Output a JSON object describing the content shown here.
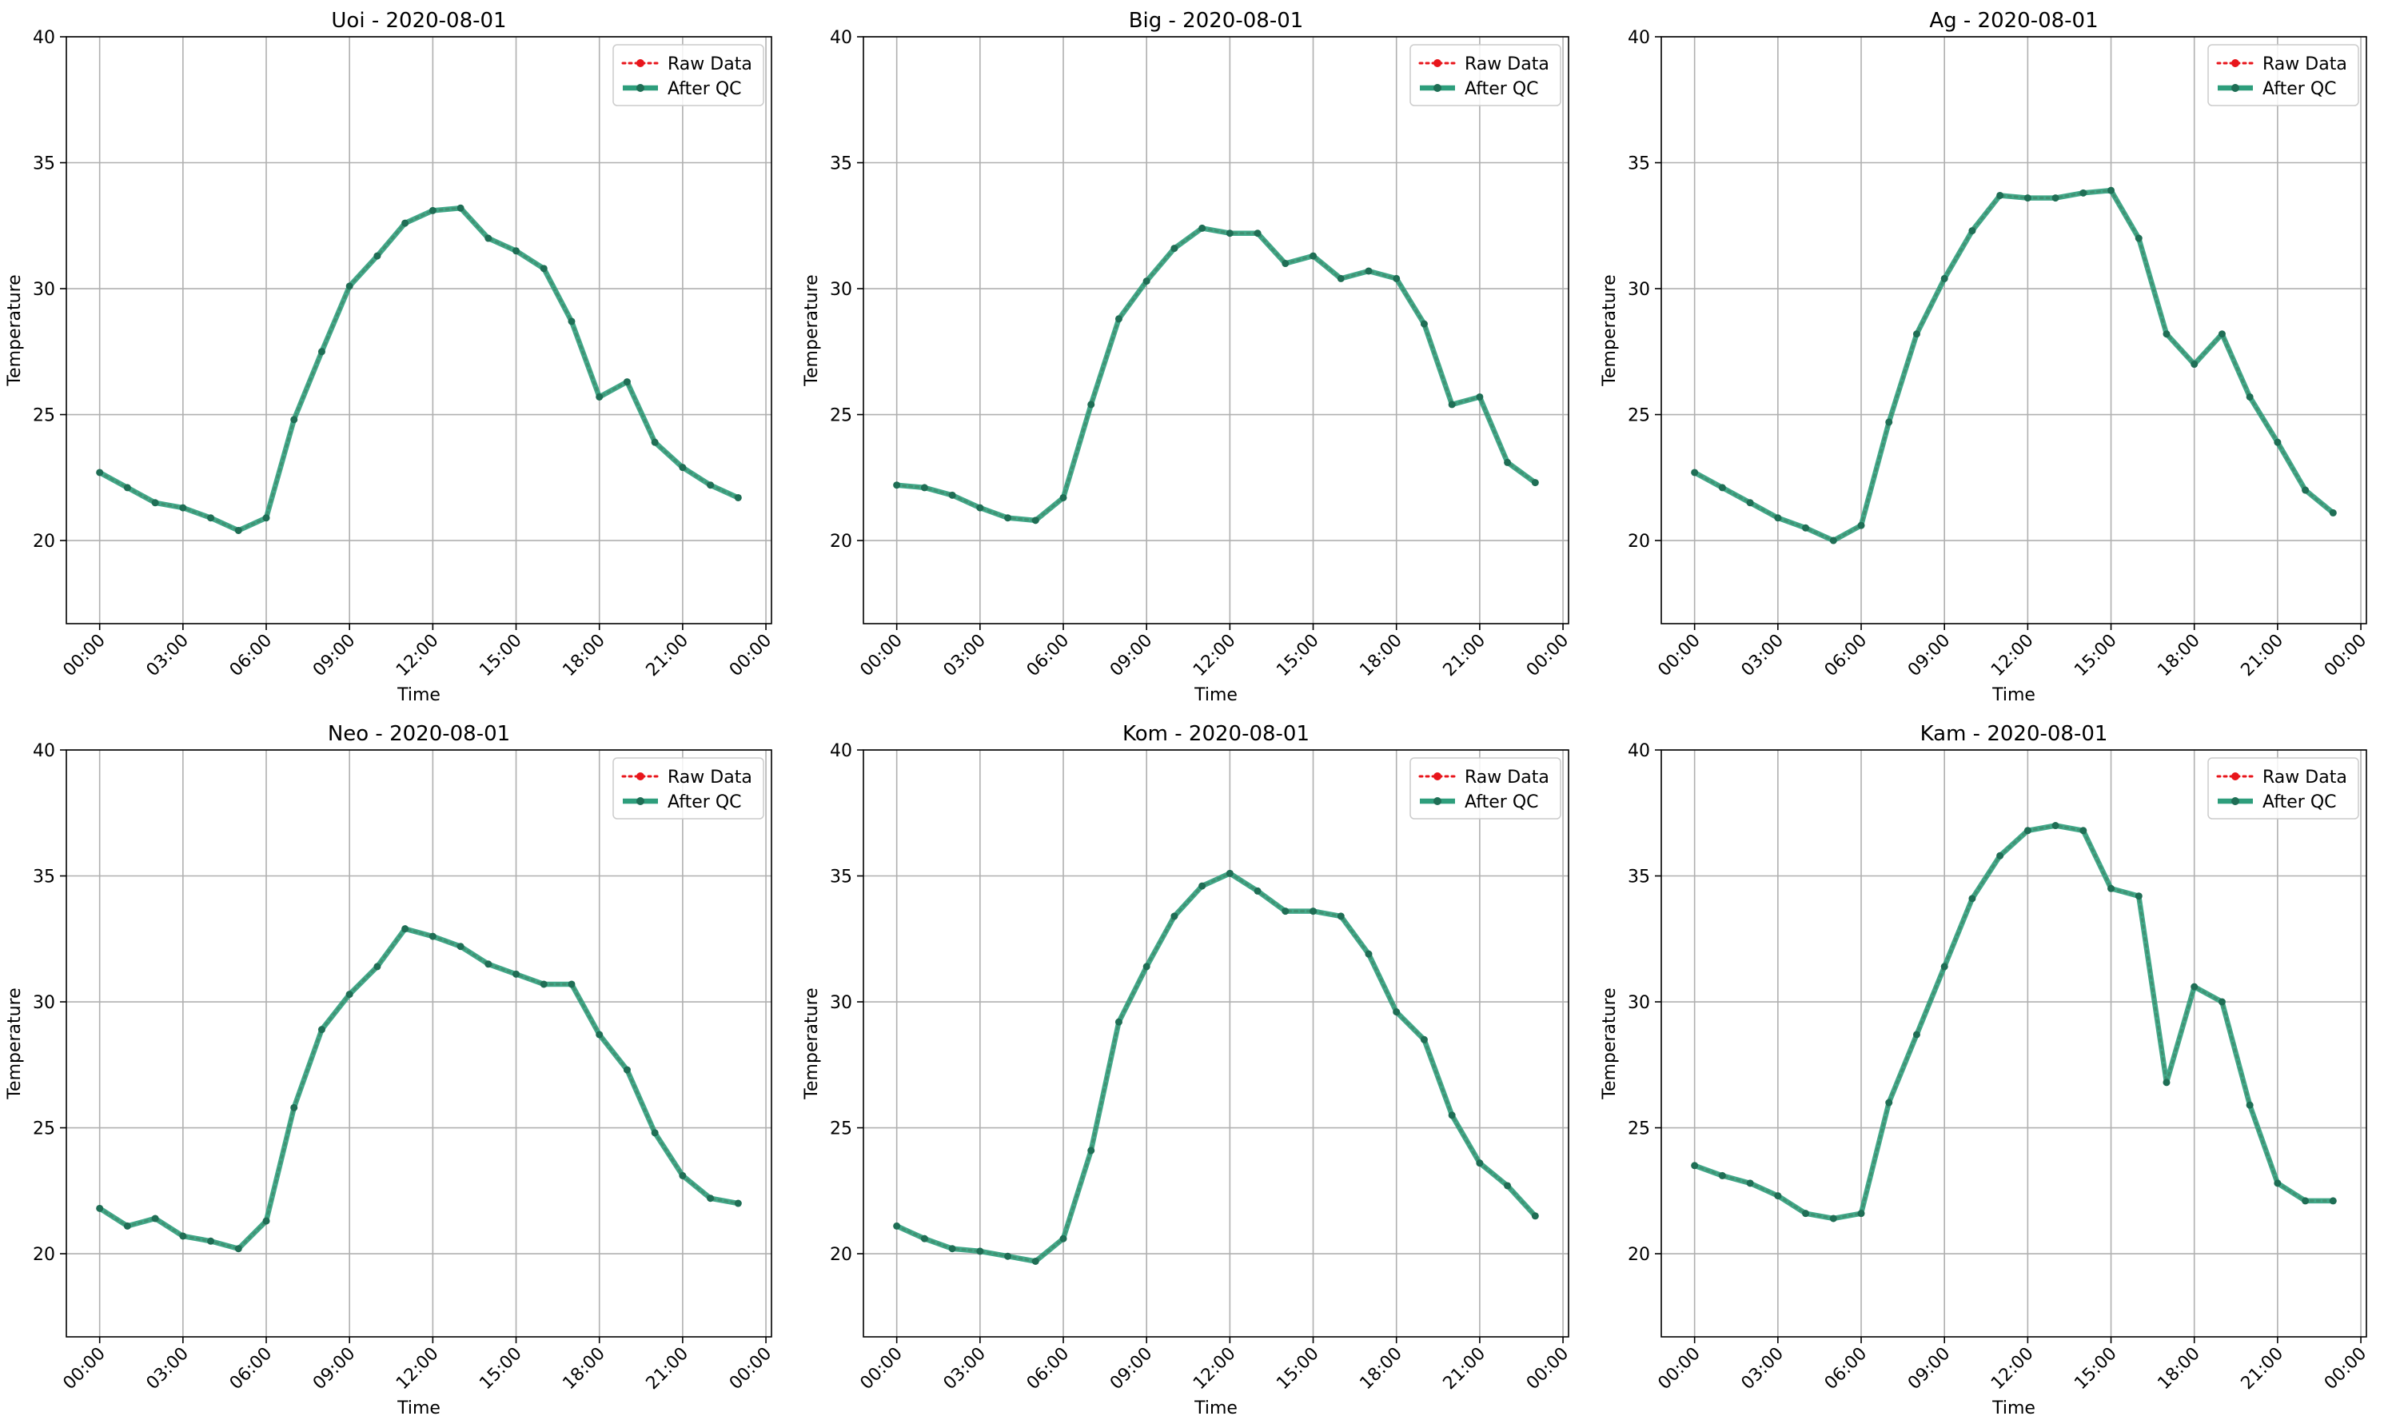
{
  "figure": {
    "legend": {
      "raw_label": "Raw Data",
      "qc_label": "After QC"
    },
    "colors": {
      "raw": "#e8151b",
      "qc": "#2e9e7c",
      "qc_marker": "#1f6e55",
      "grid": "#b0b0b0"
    }
  },
  "chart_data": [
    {
      "type": "line",
      "title": "Uoi - 2020-08-01",
      "xlabel": "Time",
      "ylabel": "Temperature",
      "xticks": [
        "00:00",
        "03:00",
        "06:00",
        "09:00",
        "12:00",
        "15:00",
        "18:00",
        "21:00",
        "00:00"
      ],
      "yticks": [
        20,
        25,
        30,
        35,
        40
      ],
      "ylim": [
        16.7,
        40
      ],
      "xlim_hours": [
        -1.2,
        24.2
      ],
      "grid": true,
      "legend_position": "upper right",
      "x_hours": [
        0,
        1,
        2,
        3,
        4,
        5,
        6,
        7,
        8,
        9,
        10,
        11,
        12,
        13,
        14,
        15,
        16,
        17,
        18,
        19,
        20,
        21,
        22,
        23
      ],
      "series": [
        {
          "name": "Raw Data",
          "values": [
            22.7,
            22.1,
            21.5,
            21.3,
            20.9,
            20.4,
            20.9,
            24.8,
            27.5,
            30.1,
            31.3,
            32.6,
            33.1,
            33.2,
            32.0,
            31.5,
            30.8,
            28.7,
            25.7,
            26.3,
            23.9,
            22.9,
            22.2,
            21.7
          ]
        },
        {
          "name": "After QC",
          "values": [
            22.7,
            22.1,
            21.5,
            21.3,
            20.9,
            20.4,
            20.9,
            24.8,
            27.5,
            30.1,
            31.3,
            32.6,
            33.1,
            33.2,
            32.0,
            31.5,
            30.8,
            28.7,
            25.7,
            26.3,
            23.9,
            22.9,
            22.2,
            21.7
          ]
        }
      ]
    },
    {
      "type": "line",
      "title": "Big - 2020-08-01",
      "xlabel": "Time",
      "ylabel": "Temperature",
      "xticks": [
        "00:00",
        "03:00",
        "06:00",
        "09:00",
        "12:00",
        "15:00",
        "18:00",
        "21:00",
        "00:00"
      ],
      "yticks": [
        20,
        25,
        30,
        35,
        40
      ],
      "ylim": [
        16.7,
        40
      ],
      "xlim_hours": [
        -1.2,
        24.2
      ],
      "grid": true,
      "legend_position": "upper right",
      "x_hours": [
        0,
        1,
        2,
        3,
        4,
        5,
        6,
        7,
        8,
        9,
        10,
        11,
        12,
        13,
        14,
        15,
        16,
        17,
        18,
        19,
        20,
        21,
        22,
        23
      ],
      "series": [
        {
          "name": "Raw Data",
          "values": [
            22.2,
            22.1,
            21.8,
            21.3,
            20.9,
            20.8,
            21.7,
            25.4,
            28.8,
            30.3,
            31.6,
            32.4,
            32.2,
            32.2,
            31.0,
            31.3,
            30.4,
            30.7,
            30.4,
            28.6,
            25.4,
            25.7,
            23.1,
            22.3
          ]
        },
        {
          "name": "After QC",
          "values": [
            22.2,
            22.1,
            21.8,
            21.3,
            20.9,
            20.8,
            21.7,
            25.4,
            28.8,
            30.3,
            31.6,
            32.4,
            32.2,
            32.2,
            31.0,
            31.3,
            30.4,
            30.7,
            30.4,
            28.6,
            25.4,
            25.7,
            23.1,
            22.3
          ]
        }
      ]
    },
    {
      "type": "line",
      "title": "Ag - 2020-08-01",
      "xlabel": "Time",
      "ylabel": "Temperature",
      "xticks": [
        "00:00",
        "03:00",
        "06:00",
        "09:00",
        "12:00",
        "15:00",
        "18:00",
        "21:00",
        "00:00"
      ],
      "yticks": [
        20,
        25,
        30,
        35,
        40
      ],
      "ylim": [
        16.7,
        40
      ],
      "xlim_hours": [
        -1.2,
        24.2
      ],
      "grid": true,
      "legend_position": "upper right",
      "x_hours": [
        0,
        1,
        2,
        3,
        4,
        5,
        6,
        7,
        8,
        9,
        10,
        11,
        12,
        13,
        14,
        15,
        16,
        17,
        18,
        19,
        20,
        21,
        22,
        23
      ],
      "series": [
        {
          "name": "Raw Data",
          "values": [
            22.7,
            22.1,
            21.5,
            20.9,
            20.5,
            20.0,
            20.6,
            24.7,
            28.2,
            30.4,
            32.3,
            33.7,
            33.6,
            33.6,
            33.8,
            33.9,
            32.0,
            28.2,
            27.0,
            28.2,
            25.7,
            23.9,
            22.0,
            21.1
          ]
        },
        {
          "name": "After QC",
          "values": [
            22.7,
            22.1,
            21.5,
            20.9,
            20.5,
            20.0,
            20.6,
            24.7,
            28.2,
            30.4,
            32.3,
            33.7,
            33.6,
            33.6,
            33.8,
            33.9,
            32.0,
            28.2,
            27.0,
            28.2,
            25.7,
            23.9,
            22.0,
            21.1
          ]
        }
      ]
    },
    {
      "type": "line",
      "title": "Neo - 2020-08-01",
      "xlabel": "Time",
      "ylabel": "Temperature",
      "xticks": [
        "00:00",
        "03:00",
        "06:00",
        "09:00",
        "12:00",
        "15:00",
        "18:00",
        "21:00",
        "00:00"
      ],
      "yticks": [
        20,
        25,
        30,
        35,
        40
      ],
      "ylim": [
        16.7,
        40
      ],
      "xlim_hours": [
        -1.2,
        24.2
      ],
      "grid": true,
      "legend_position": "upper right",
      "x_hours": [
        0,
        1,
        2,
        3,
        4,
        5,
        6,
        7,
        8,
        9,
        10,
        11,
        12,
        13,
        14,
        15,
        16,
        17,
        18,
        19,
        20,
        21,
        22,
        23
      ],
      "series": [
        {
          "name": "Raw Data",
          "values": [
            21.8,
            21.1,
            21.4,
            20.7,
            20.5,
            20.2,
            21.3,
            25.8,
            28.9,
            30.3,
            31.4,
            32.9,
            32.6,
            32.2,
            31.5,
            31.1,
            30.7,
            30.7,
            28.7,
            27.3,
            24.8,
            23.1,
            22.2,
            22.0
          ]
        },
        {
          "name": "After QC",
          "values": [
            21.8,
            21.1,
            21.4,
            20.7,
            20.5,
            20.2,
            21.3,
            25.8,
            28.9,
            30.3,
            31.4,
            32.9,
            32.6,
            32.2,
            31.5,
            31.1,
            30.7,
            30.7,
            28.7,
            27.3,
            24.8,
            23.1,
            22.2,
            22.0
          ]
        }
      ]
    },
    {
      "type": "line",
      "title": "Kom - 2020-08-01",
      "xlabel": "Time",
      "ylabel": "Temperature",
      "xticks": [
        "00:00",
        "03:00",
        "06:00",
        "09:00",
        "12:00",
        "15:00",
        "18:00",
        "21:00",
        "00:00"
      ],
      "yticks": [
        20,
        25,
        30,
        35,
        40
      ],
      "ylim": [
        16.7,
        40
      ],
      "xlim_hours": [
        -1.2,
        24.2
      ],
      "grid": true,
      "legend_position": "upper right",
      "x_hours": [
        0,
        1,
        2,
        3,
        4,
        5,
        6,
        7,
        8,
        9,
        10,
        11,
        12,
        13,
        14,
        15,
        16,
        17,
        18,
        19,
        20,
        21,
        22,
        23
      ],
      "series": [
        {
          "name": "Raw Data",
          "values": [
            21.1,
            20.6,
            20.2,
            20.1,
            19.9,
            19.7,
            20.6,
            24.1,
            29.2,
            31.4,
            33.4,
            34.6,
            35.1,
            34.4,
            33.6,
            33.6,
            33.4,
            31.9,
            29.6,
            28.5,
            25.5,
            23.6,
            22.7,
            21.5
          ]
        },
        {
          "name": "After QC",
          "values": [
            21.1,
            20.6,
            20.2,
            20.1,
            19.9,
            19.7,
            20.6,
            24.1,
            29.2,
            31.4,
            33.4,
            34.6,
            35.1,
            34.4,
            33.6,
            33.6,
            33.4,
            31.9,
            29.6,
            28.5,
            25.5,
            23.6,
            22.7,
            21.5
          ]
        }
      ]
    },
    {
      "type": "line",
      "title": "Kam - 2020-08-01",
      "xlabel": "Time",
      "ylabel": "Temperature",
      "xticks": [
        "00:00",
        "03:00",
        "06:00",
        "09:00",
        "12:00",
        "15:00",
        "18:00",
        "21:00",
        "00:00"
      ],
      "yticks": [
        20,
        25,
        30,
        35,
        40
      ],
      "ylim": [
        16.7,
        40
      ],
      "xlim_hours": [
        -1.2,
        24.2
      ],
      "grid": true,
      "legend_position": "upper right",
      "x_hours": [
        0,
        1,
        2,
        3,
        4,
        5,
        6,
        7,
        8,
        9,
        10,
        11,
        12,
        13,
        14,
        15,
        16,
        17,
        18,
        19,
        20,
        21,
        22,
        23
      ],
      "series": [
        {
          "name": "Raw Data",
          "values": [
            23.5,
            23.1,
            22.8,
            22.3,
            21.6,
            21.4,
            21.6,
            26.0,
            28.7,
            31.4,
            34.1,
            35.8,
            36.8,
            37.0,
            36.8,
            34.5,
            34.2,
            26.8,
            30.6,
            30.0,
            25.9,
            22.8,
            22.1,
            22.1
          ]
        },
        {
          "name": "After QC",
          "values": [
            23.5,
            23.1,
            22.8,
            22.3,
            21.6,
            21.4,
            21.6,
            26.0,
            28.7,
            31.4,
            34.1,
            35.8,
            36.8,
            37.0,
            36.8,
            34.5,
            34.2,
            26.8,
            30.6,
            30.0,
            25.9,
            22.8,
            22.1,
            22.1
          ]
        }
      ]
    }
  ]
}
